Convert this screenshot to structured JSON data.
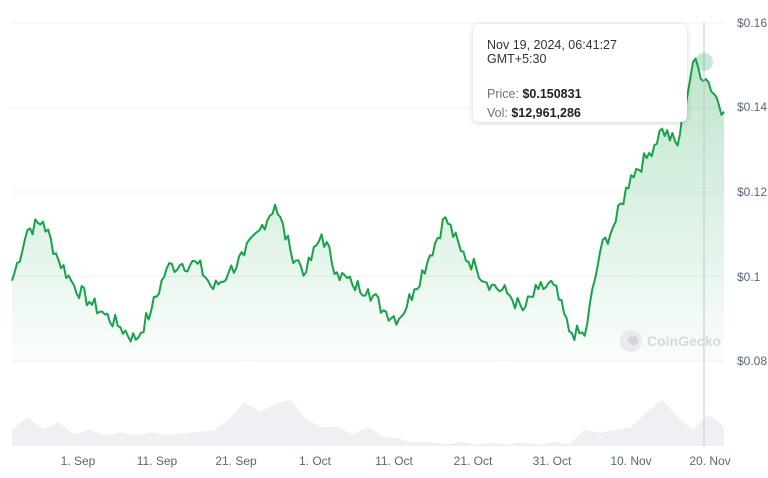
{
  "chart_data": {
    "type": "line",
    "title": "",
    "xlabel": "",
    "ylabel": "",
    "ylim": [
      0.075,
      0.16
    ],
    "grid": true,
    "legend": "none",
    "y_ticks": [
      "$0.16",
      "$0.14",
      "$0.12",
      "$0.1",
      "$0.08"
    ],
    "x_ticks": [
      "1. Sep",
      "11. Sep",
      "21. Sep",
      "1. Oct",
      "11. Oct",
      "21. Oct",
      "31. Oct",
      "10. Nov",
      "20. Nov"
    ],
    "series": [
      {
        "name": "Price",
        "color": "#16a34a",
        "x": [
          "Aug 24",
          "Aug 26",
          "Aug 28",
          "Aug 30",
          "Sep 1",
          "Sep 3",
          "Sep 5",
          "Sep 7",
          "Sep 9",
          "Sep 11",
          "Sep 13",
          "Sep 15",
          "Sep 17",
          "Sep 19",
          "Sep 21",
          "Sep 23",
          "Sep 25",
          "Sep 27",
          "Sep 29",
          "Oct 1",
          "Oct 3",
          "Oct 5",
          "Oct 7",
          "Oct 9",
          "Oct 11",
          "Oct 13",
          "Oct 15",
          "Oct 17",
          "Oct 19",
          "Oct 21",
          "Oct 23",
          "Oct 25",
          "Oct 27",
          "Oct 29",
          "Oct 31",
          "Nov 2",
          "Nov 4",
          "Nov 6",
          "Nov 8",
          "Nov 10",
          "Nov 12",
          "Nov 14",
          "Nov 16",
          "Nov 18",
          "Nov 19",
          "Nov 20",
          "Nov 21"
        ],
        "values": [
          0.099,
          0.111,
          0.113,
          0.104,
          0.098,
          0.094,
          0.091,
          0.088,
          0.085,
          0.092,
          0.102,
          0.103,
          0.103,
          0.097,
          0.101,
          0.105,
          0.111,
          0.117,
          0.106,
          0.101,
          0.11,
          0.101,
          0.098,
          0.097,
          0.092,
          0.09,
          0.097,
          0.105,
          0.114,
          0.106,
          0.102,
          0.098,
          0.096,
          0.092,
          0.097,
          0.098,
          0.087,
          0.086,
          0.106,
          0.113,
          0.124,
          0.128,
          0.135,
          0.131,
          0.1508,
          0.146,
          0.139
        ]
      },
      {
        "name": "Volume",
        "color": "#eef0f3",
        "relative_values": [
          0.35,
          0.55,
          0.35,
          0.45,
          0.25,
          0.3,
          0.22,
          0.25,
          0.22,
          0.25,
          0.24,
          0.22,
          0.3,
          0.28,
          0.55,
          0.85,
          0.7,
          0.8,
          0.95,
          0.5,
          0.4,
          0.35,
          0.25,
          0.35,
          0.2,
          0.12,
          0.08,
          0.06,
          0.05,
          0.05,
          0.05,
          0.04,
          0.04,
          0.04,
          0.04,
          0.05,
          0.05,
          0.3,
          0.28,
          0.3,
          0.4,
          0.65,
          0.95,
          0.55,
          0.35,
          0.6,
          0.4
        ]
      }
    ],
    "tooltip": {
      "date": "Nov 19, 2024, 06:41:27 GMT+5:30",
      "price": "$0.150831",
      "volume": "$12,961,286"
    }
  },
  "tooltip": {
    "date": "Nov 19, 2024, 06:41:27 GMT+5:30",
    "price_label": "Price:",
    "price_value": "$0.150831",
    "vol_label": "Vol:",
    "vol_value": "$12,961,286"
  },
  "y_axis": {
    "t0": "$0.16",
    "t1": "$0.14",
    "t2": "$0.12",
    "t3": "$0.1",
    "t4": "$0.08"
  },
  "x_axis": {
    "t0": "1. Sep",
    "t1": "11. Sep",
    "t2": "21. Sep",
    "t3": "1. Oct",
    "t4": "11. Oct",
    "t5": "21. Oct",
    "t6": "31. Oct",
    "t7": "10. Nov",
    "t8": "20. Nov"
  },
  "watermark": "CoinGecko",
  "colors": {
    "line": "#16a34a",
    "area_top": "#16a34a",
    "volume": "#eef0f3",
    "grid": "#f1f2f4",
    "axis_text": "#58667e"
  }
}
